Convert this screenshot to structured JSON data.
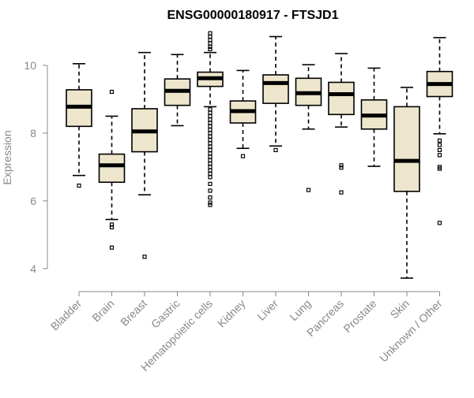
{
  "chart_data": {
    "type": "box",
    "title": "ENSG00000180917 - FTSJD1",
    "ylabel": "Expression",
    "xlabel": "",
    "ylim": [
      3.6,
      11.0
    ],
    "yticks": [
      4,
      6,
      8,
      10
    ],
    "categories": [
      "Bladder",
      "Brain",
      "Breast",
      "Gastric",
      "Hematopoietic cells",
      "Kidney",
      "Liver",
      "Lung",
      "Pancreas",
      "Prostate",
      "Skin",
      "Unknown / Other"
    ],
    "boxes": [
      {
        "category": "Bladder",
        "whisker_low": 6.75,
        "q1": 8.2,
        "median": 8.78,
        "q3": 9.28,
        "whisker_high": 10.05,
        "outliers": [
          6.45
        ]
      },
      {
        "category": "Brain",
        "whisker_low": 5.45,
        "q1": 6.55,
        "median": 7.05,
        "q3": 7.38,
        "whisker_high": 8.5,
        "outliers": [
          9.22,
          5.3,
          5.22,
          4.62
        ]
      },
      {
        "category": "Breast",
        "whisker_low": 6.18,
        "q1": 7.45,
        "median": 8.05,
        "q3": 8.72,
        "whisker_high": 10.38,
        "outliers": [
          4.35
        ]
      },
      {
        "category": "Gastric",
        "whisker_low": 8.22,
        "q1": 8.82,
        "median": 9.25,
        "q3": 9.6,
        "whisker_high": 10.32,
        "outliers": []
      },
      {
        "category": "Hematopoietic cells",
        "whisker_low": 8.78,
        "q1": 9.38,
        "median": 9.62,
        "q3": 9.8,
        "whisker_high": 10.38,
        "outliers": [
          10.95,
          10.85,
          10.75,
          10.65,
          10.55,
          10.48,
          8.7,
          8.6,
          8.5,
          8.4,
          8.3,
          8.2,
          8.1,
          8.0,
          7.9,
          7.8,
          7.7,
          7.6,
          7.5,
          7.4,
          7.3,
          7.2,
          7.1,
          7.0,
          6.9,
          6.8,
          6.7,
          6.5,
          6.3,
          6.1,
          5.95,
          5.88
        ]
      },
      {
        "category": "Kidney",
        "whisker_low": 7.55,
        "q1": 8.3,
        "median": 8.65,
        "q3": 8.95,
        "whisker_high": 9.85,
        "outliers": [
          7.32
        ]
      },
      {
        "category": "Liver",
        "whisker_low": 7.62,
        "q1": 8.88,
        "median": 9.48,
        "q3": 9.72,
        "whisker_high": 10.85,
        "outliers": [
          7.5
        ]
      },
      {
        "category": "Lung",
        "whisker_low": 8.12,
        "q1": 8.82,
        "median": 9.18,
        "q3": 9.62,
        "whisker_high": 10.02,
        "outliers": [
          6.32
        ]
      },
      {
        "category": "Pancreas",
        "whisker_low": 8.18,
        "q1": 8.55,
        "median": 9.15,
        "q3": 9.5,
        "whisker_high": 10.35,
        "outliers": [
          7.05,
          6.98,
          6.25
        ]
      },
      {
        "category": "Prostate",
        "whisker_low": 7.02,
        "q1": 8.12,
        "median": 8.52,
        "q3": 8.98,
        "whisker_high": 9.92,
        "outliers": []
      },
      {
        "category": "Skin",
        "whisker_low": 3.72,
        "q1": 6.28,
        "median": 7.18,
        "q3": 8.78,
        "whisker_high": 9.35,
        "outliers": []
      },
      {
        "category": "Unknown / Other",
        "whisker_low": 7.98,
        "q1": 9.08,
        "median": 9.45,
        "q3": 9.82,
        "whisker_high": 10.82,
        "outliers": [
          7.78,
          7.65,
          7.5,
          7.35,
          7.0,
          6.95,
          5.35
        ]
      }
    ],
    "box_fill": "#ede6cc",
    "box_stroke": "#000000",
    "axis_color": "#888888",
    "grid": false,
    "legend": "none"
  }
}
